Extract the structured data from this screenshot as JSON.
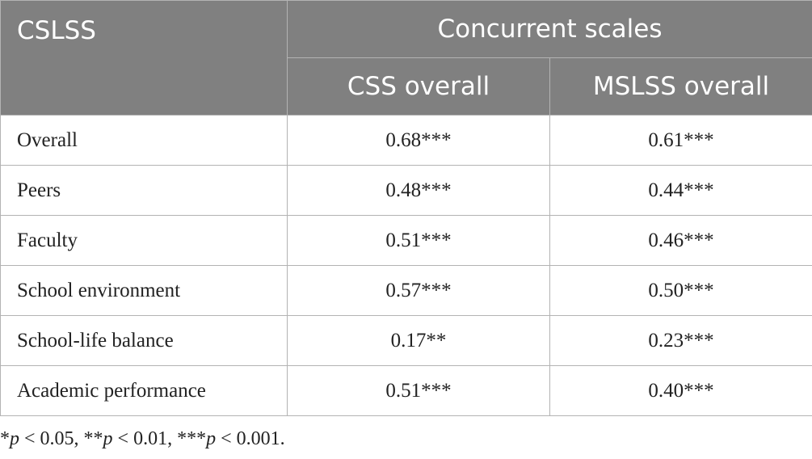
{
  "table": {
    "stub_header": "CSLSS",
    "group_header": "Concurrent scales",
    "columns": [
      "CSS overall",
      "MSLSS overall"
    ],
    "rows": [
      {
        "label": "Overall",
        "css": "0.68***",
        "mslss": "0.61***"
      },
      {
        "label": "Peers",
        "css": "0.48***",
        "mslss": "0.44***"
      },
      {
        "label": "Faculty",
        "css": "0.51***",
        "mslss": "0.46***"
      },
      {
        "label": "School environment",
        "css": "0.57***",
        "mslss": "0.50***"
      },
      {
        "label": "School-life balance",
        "css": "0.17**",
        "mslss": "0.23***"
      },
      {
        "label": "Academic performance",
        "css": "0.51***",
        "mslss": "0.40***"
      }
    ]
  },
  "footnote": {
    "star1": "*",
    "p1": "p",
    "t1": " < 0.05, **",
    "p2": "p",
    "t2": " < 0.01, ***",
    "p3": "p",
    "t3": " < 0.001."
  }
}
